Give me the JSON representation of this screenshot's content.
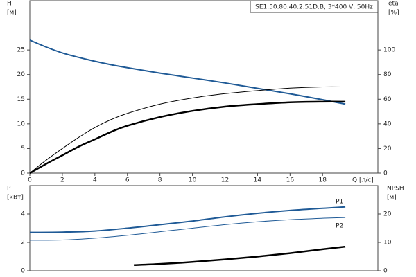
{
  "chart_data": [
    {
      "type": "line",
      "title": "SE1.50.80.40.2.51D.B, 3*400 V, 50Hz",
      "ylabel": "H",
      "yunit": "[м]",
      "y2label": "eta",
      "y2unit": "[%]",
      "xlabel": "Q [л/с]",
      "xlim": [
        0,
        21.4
      ],
      "xticks": [
        0,
        2,
        4,
        6,
        8,
        10,
        12,
        14,
        16,
        18
      ],
      "ylim": [
        0,
        35
      ],
      "yticks": [
        0,
        5,
        10,
        15,
        20,
        25
      ],
      "y2lim": [
        0,
        140
      ],
      "y2ticks": [
        0,
        20,
        40,
        60,
        80,
        100
      ],
      "series": [
        {
          "color": "#1f5a96",
          "line_width": 2,
          "x": [
            0,
            1,
            2,
            3,
            4,
            5,
            6,
            8,
            10,
            12,
            14,
            16,
            18,
            19.4
          ],
          "values": [
            27,
            25.6,
            24.4,
            23.5,
            22.7,
            22,
            21.4,
            20.3,
            19.3,
            18.3,
            17.2,
            16.1,
            14.9,
            14
          ]
        },
        {
          "color": "#000000",
          "line_width": 1,
          "axis": "y2",
          "x": [
            0,
            1,
            2,
            3,
            4,
            5,
            6,
            8,
            10,
            12,
            14,
            16,
            18,
            19.4
          ],
          "values": [
            0,
            10.5,
            20,
            29,
            37,
            43.5,
            48.5,
            56,
            61,
            64.5,
            67,
            69,
            70,
            70
          ]
        },
        {
          "color": "#000000",
          "line_width": 2.5,
          "axis": "y2",
          "x": [
            0,
            1,
            2,
            3,
            4,
            5,
            6,
            8,
            10,
            12,
            14,
            16,
            18,
            19.4
          ],
          "values": [
            0,
            7.5,
            14.5,
            21.5,
            27.5,
            33.5,
            38.5,
            45.5,
            50.5,
            54,
            56,
            57.5,
            58,
            58
          ]
        }
      ]
    },
    {
      "type": "line",
      "ylabel": "P",
      "yunit": "[кВт]",
      "y2label": "NPSH",
      "y2unit": "[м]",
      "xlim": [
        0,
        21.4
      ],
      "ylim": [
        0,
        6
      ],
      "yticks": [
        0,
        2,
        4
      ],
      "y2lim": [
        0,
        30
      ],
      "y2ticks": [
        0,
        10,
        20
      ],
      "series": [
        {
          "name": "P1",
          "color": "#1f5a96",
          "line_width": 2,
          "x": [
            0,
            2,
            4,
            6,
            8,
            10,
            12,
            14,
            16,
            18,
            19.4
          ],
          "values": [
            2.7,
            2.72,
            2.8,
            3.0,
            3.25,
            3.5,
            3.8,
            4.05,
            4.25,
            4.4,
            4.5
          ]
        },
        {
          "name": "P2",
          "color": "#1f5a96",
          "line_width": 1,
          "x": [
            0,
            2,
            4,
            6,
            8,
            10,
            12,
            14,
            16,
            18,
            19.4
          ],
          "values": [
            2.15,
            2.17,
            2.3,
            2.5,
            2.75,
            3.0,
            3.25,
            3.45,
            3.6,
            3.7,
            3.75
          ]
        },
        {
          "color": "#000000",
          "line_width": 2.5,
          "axis": "y2",
          "x": [
            6.4,
            8,
            10,
            12,
            14,
            16,
            18,
            19.4
          ],
          "values": [
            2,
            2.4,
            3.1,
            4,
            5,
            6.2,
            7.6,
            8.5
          ]
        }
      ]
    }
  ]
}
